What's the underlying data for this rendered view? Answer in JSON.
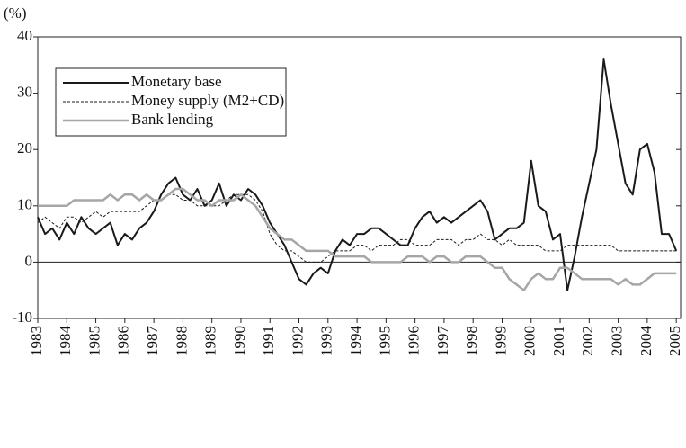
{
  "chart_data": {
    "type": "line",
    "y_unit_label": "(%)",
    "x": [
      1983,
      1983.25,
      1983.5,
      1983.75,
      1984,
      1984.25,
      1984.5,
      1984.75,
      1985,
      1985.25,
      1985.5,
      1985.75,
      1986,
      1986.25,
      1986.5,
      1986.75,
      1987,
      1987.25,
      1987.5,
      1987.75,
      1988,
      1988.25,
      1988.5,
      1988.75,
      1989,
      1989.25,
      1989.5,
      1989.75,
      1990,
      1990.25,
      1990.5,
      1990.75,
      1991,
      1991.25,
      1991.5,
      1991.75,
      1992,
      1992.25,
      1992.5,
      1992.75,
      1993,
      1993.25,
      1993.5,
      1993.75,
      1994,
      1994.25,
      1994.5,
      1994.75,
      1995,
      1995.25,
      1995.5,
      1995.75,
      1996,
      1996.25,
      1996.5,
      1996.75,
      1997,
      1997.25,
      1997.5,
      1997.75,
      1998,
      1998.25,
      1998.5,
      1998.75,
      1999,
      1999.25,
      1999.5,
      1999.75,
      2000,
      2000.25,
      2000.5,
      2000.75,
      2001,
      2001.25,
      2001.5,
      2001.75,
      2002,
      2002.25,
      2002.5,
      2002.75,
      2003,
      2003.25,
      2003.5,
      2003.75,
      2004,
      2004.25,
      2004.5,
      2004.75,
      2005
    ],
    "series": [
      {
        "name": "Monetary base",
        "color": "#1a1a1a",
        "style": "solid",
        "width": 2,
        "values": [
          8,
          5,
          6,
          4,
          7,
          5,
          8,
          6,
          5,
          6,
          7,
          3,
          5,
          4,
          6,
          7,
          9,
          12,
          14,
          15,
          12,
          11,
          13,
          10,
          11,
          14,
          10,
          12,
          11,
          13,
          12,
          10,
          7,
          5,
          3,
          0,
          -3,
          -4,
          -2,
          -1,
          -2,
          2,
          4,
          3,
          5,
          5,
          6,
          6,
          5,
          4,
          3,
          3,
          6,
          8,
          9,
          7,
          8,
          7,
          8,
          9,
          10,
          11,
          9,
          4,
          5,
          6,
          6,
          7,
          18,
          10,
          9,
          4,
          5,
          -5,
          1,
          8,
          14,
          20,
          36,
          28,
          21,
          14,
          12,
          20,
          21,
          16,
          5,
          5,
          2
        ]
      },
      {
        "name": "Money supply (M2+CD)",
        "color": "#1a1a1a",
        "style": "dashed",
        "width": 1,
        "values": [
          7,
          8,
          7,
          6,
          8,
          8,
          7,
          8,
          9,
          8,
          9,
          9,
          9,
          9,
          9,
          10,
          11,
          11,
          12,
          12,
          11,
          11,
          10,
          10,
          10,
          10,
          11,
          12,
          12,
          12,
          11,
          9,
          5,
          3,
          2,
          2,
          1,
          0,
          0,
          0,
          1,
          2,
          2,
          2,
          3,
          3,
          2,
          3,
          3,
          3,
          4,
          4,
          3,
          3,
          3,
          4,
          4,
          4,
          3,
          4,
          4,
          5,
          4,
          4,
          3,
          4,
          3,
          3,
          3,
          3,
          2,
          2,
          2,
          3,
          3,
          3,
          3,
          3,
          3,
          3,
          2,
          2,
          2,
          2,
          2,
          2,
          2,
          2,
          2
        ]
      },
      {
        "name": "Bank lending",
        "color": "#a6a6a6",
        "style": "solid",
        "width": 2.5,
        "values": [
          10,
          10,
          10,
          10,
          10,
          11,
          11,
          11,
          11,
          11,
          12,
          11,
          12,
          12,
          11,
          12,
          11,
          11,
          12,
          13,
          13,
          12,
          11,
          11,
          10,
          11,
          11,
          11,
          12,
          11,
          10,
          8,
          6,
          5,
          4,
          4,
          3,
          2,
          2,
          2,
          2,
          1,
          1,
          1,
          1,
          1,
          0,
          0,
          0,
          0,
          0,
          1,
          1,
          1,
          0,
          1,
          1,
          0,
          0,
          1,
          1,
          1,
          0,
          -1,
          -1,
          -3,
          -4,
          -5,
          -3,
          -2,
          -3,
          -3,
          -1,
          -1,
          -2,
          -3,
          -3,
          -3,
          -3,
          -3,
          -4,
          -3,
          -4,
          -4,
          -3,
          -2,
          -2,
          -2,
          -2
        ]
      }
    ],
    "xlim": [
      1983,
      2005.15
    ],
    "xticks": [
      1983,
      1984,
      1985,
      1986,
      1987,
      1988,
      1989,
      1990,
      1991,
      1992,
      1993,
      1994,
      1995,
      1996,
      1997,
      1998,
      1999,
      2000,
      2001,
      2002,
      2003,
      2004,
      2005
    ],
    "ylim": [
      -10,
      40
    ],
    "yticks": [
      -10,
      0,
      10,
      20,
      30,
      40
    ],
    "zero_line": true,
    "legend": "upper left"
  }
}
